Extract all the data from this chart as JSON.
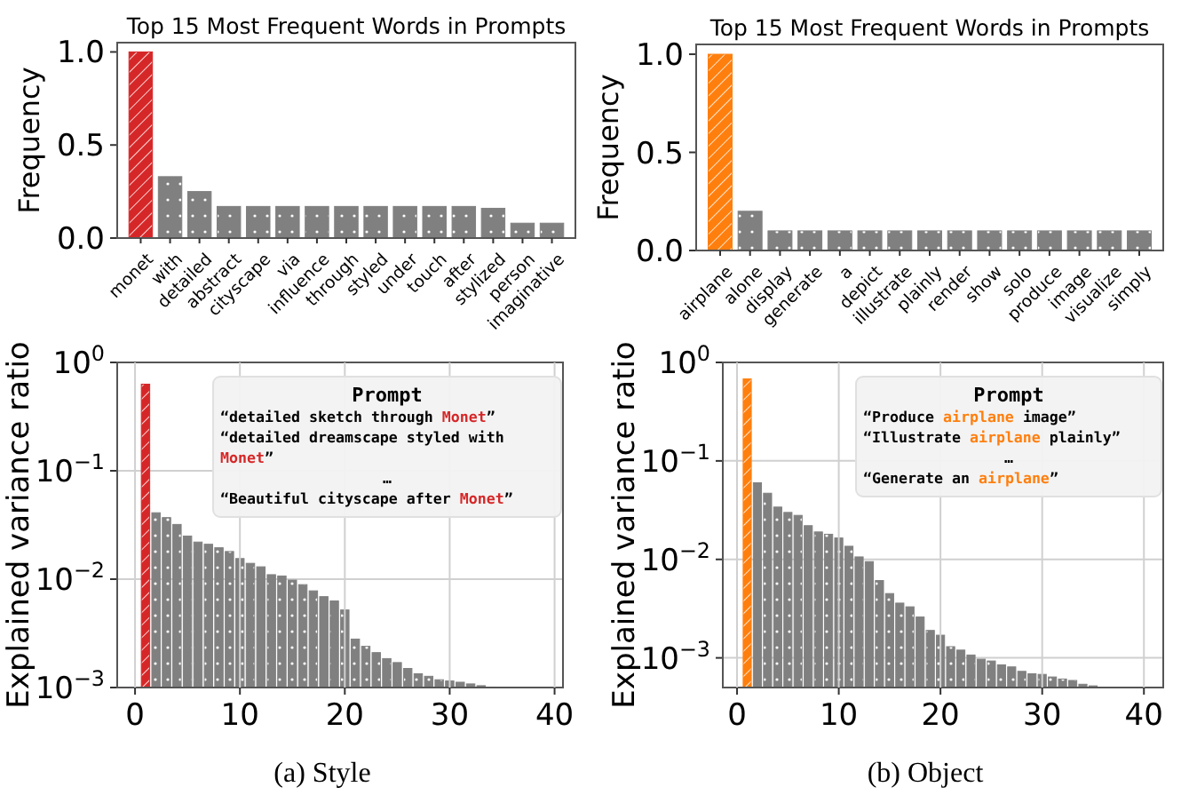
{
  "chart_data": [
    {
      "type": "bar",
      "title": "Top 15 Most Frequent Words in Prompts",
      "ylabel": "Frequency",
      "categories": [
        "monet",
        "with",
        "detailed",
        "abstract",
        "cityscape",
        "via",
        "influence",
        "through",
        "styled",
        "under",
        "touch",
        "after",
        "stylized",
        "person",
        "imaginative"
      ],
      "values": [
        1.0,
        0.33,
        0.25,
        0.17,
        0.17,
        0.17,
        0.17,
        0.17,
        0.17,
        0.17,
        0.17,
        0.17,
        0.16,
        0.08,
        0.08
      ],
      "colors": [
        "#d62728",
        "#808080",
        "#808080",
        "#808080",
        "#808080",
        "#808080",
        "#808080",
        "#808080",
        "#808080",
        "#808080",
        "#808080",
        "#808080",
        "#808080",
        "#808080",
        "#808080"
      ],
      "ylim": [
        0,
        1.05
      ],
      "yticks": [
        {
          "value": 0,
          "label": "0.0"
        },
        {
          "value": 0.5,
          "label": "0.5"
        },
        {
          "value": 1,
          "label": "1.0"
        }
      ],
      "grid": false
    },
    {
      "type": "bar",
      "title": "Top 15 Most Frequent Words in Prompts",
      "ylabel": "Frequency",
      "categories": [
        "airplane",
        "alone",
        "display",
        "generate",
        "a",
        "depict",
        "illustrate",
        "plainly",
        "render",
        "show",
        "solo",
        "produce",
        "image",
        "visualize",
        "simply"
      ],
      "values": [
        1.0,
        0.2,
        0.1,
        0.1,
        0.1,
        0.1,
        0.1,
        0.1,
        0.1,
        0.1,
        0.1,
        0.1,
        0.1,
        0.1,
        0.1
      ],
      "colors": [
        "#ff7f0e",
        "#808080",
        "#808080",
        "#808080",
        "#808080",
        "#808080",
        "#808080",
        "#808080",
        "#808080",
        "#808080",
        "#808080",
        "#808080",
        "#808080",
        "#808080",
        "#808080"
      ],
      "ylim": [
        0,
        1.05
      ],
      "yticks": [
        {
          "value": 0,
          "label": "0.0"
        },
        {
          "value": 0.5,
          "label": "0.5"
        },
        {
          "value": 1,
          "label": "1.0"
        }
      ],
      "grid": false
    },
    {
      "type": "bar",
      "ylabel": "Explained variance ratio",
      "log": "y",
      "grid": true,
      "x": [
        1,
        2,
        3,
        4,
        5,
        6,
        7,
        8,
        9,
        10,
        11,
        12,
        13,
        14,
        15,
        16,
        17,
        18,
        19,
        20,
        21,
        22,
        23,
        24,
        25,
        26,
        27,
        28,
        29,
        30,
        31,
        32,
        33,
        34
      ],
      "values": [
        0.63,
        0.041,
        0.037,
        0.032,
        0.025,
        0.022,
        0.021,
        0.0195,
        0.018,
        0.0155,
        0.014,
        0.013,
        0.011,
        0.0107,
        0.0098,
        0.0089,
        0.0078,
        0.0069,
        0.0063,
        0.0052,
        0.0028,
        0.0024,
        0.0021,
        0.00185,
        0.0017,
        0.0015,
        0.00134,
        0.00127,
        0.00118,
        0.00115,
        0.00112,
        0.00108,
        0.00104,
        0.00101
      ],
      "colors": [
        "#d62728",
        "#808080",
        "#808080",
        "#808080",
        "#808080",
        "#808080",
        "#808080",
        "#808080",
        "#808080",
        "#808080",
        "#808080",
        "#808080",
        "#808080",
        "#808080",
        "#808080",
        "#808080",
        "#808080",
        "#808080",
        "#808080",
        "#808080",
        "#808080",
        "#808080",
        "#808080",
        "#808080",
        "#808080",
        "#808080",
        "#808080",
        "#808080",
        "#808080",
        "#808080",
        "#808080",
        "#808080",
        "#808080",
        "#808080"
      ],
      "xlim": [
        -1.7,
        40.8
      ],
      "xticks": [
        0,
        10,
        20,
        30,
        40
      ],
      "ylim": [
        0.001,
        1
      ],
      "yticks": [
        {
          "value": 1,
          "label": "10$^{0}$"
        },
        {
          "value": 0.1,
          "label": "10$^{−1}$"
        },
        {
          "value": 0.01,
          "label": "10$^{−2}$"
        },
        {
          "value": 0.001,
          "label": "10$^{−3}$"
        }
      ],
      "annotations": [
        "Prompt",
        "“detailed sketch through Monet”",
        "“detailed dreamscape styled with Monet”",
        "…",
        "“Beautiful cityscape after Monet”",
        "(a) Style"
      ]
    },
    {
      "type": "bar",
      "ylabel": "Explained variance ratio",
      "log": "y",
      "grid": true,
      "x": [
        1,
        2,
        3,
        4,
        5,
        6,
        7,
        8,
        9,
        10,
        11,
        12,
        13,
        14,
        15,
        16,
        17,
        18,
        19,
        20,
        21,
        22,
        23,
        24,
        25,
        26,
        27,
        28,
        29,
        30,
        31,
        32,
        33,
        34,
        35
      ],
      "values": [
        0.68,
        0.06,
        0.047,
        0.034,
        0.03,
        0.028,
        0.022,
        0.019,
        0.018,
        0.0165,
        0.0136,
        0.0106,
        0.0095,
        0.0061,
        0.0045,
        0.0036,
        0.0033,
        0.0026,
        0.0019,
        0.0017,
        0.0013,
        0.0012,
        0.00107,
        0.00097,
        0.00093,
        0.00085,
        0.00081,
        0.00073,
        0.00069,
        0.00068,
        0.00064,
        0.00061,
        0.00059,
        0.00054,
        0.00052
      ],
      "colors": [
        "#ff7f0e",
        "#808080",
        "#808080",
        "#808080",
        "#808080",
        "#808080",
        "#808080",
        "#808080",
        "#808080",
        "#808080",
        "#808080",
        "#808080",
        "#808080",
        "#808080",
        "#808080",
        "#808080",
        "#808080",
        "#808080",
        "#808080",
        "#808080",
        "#808080",
        "#808080",
        "#808080",
        "#808080",
        "#808080",
        "#808080",
        "#808080",
        "#808080",
        "#808080",
        "#808080",
        "#808080",
        "#808080",
        "#808080",
        "#808080",
        "#808080"
      ],
      "xlim": [
        -1.4,
        41.9
      ],
      "xticks": [
        0,
        10,
        20,
        30,
        40
      ],
      "ylim": [
        0.0005,
        1
      ],
      "yticks": [
        {
          "value": 1,
          "label": "10$^{0}$"
        },
        {
          "value": 0.1,
          "label": "10$^{−1}$"
        },
        {
          "value": 0.01,
          "label": "10$^{−2}$"
        },
        {
          "value": 0.001,
          "label": "10$^{−3}$"
        }
      ],
      "annotations": [
        "Prompt",
        "“Produce airplane image”",
        "“Illustrate airplane plainly”",
        "…",
        "“Generate an airplane”",
        "(b) Object"
      ]
    }
  ]
}
